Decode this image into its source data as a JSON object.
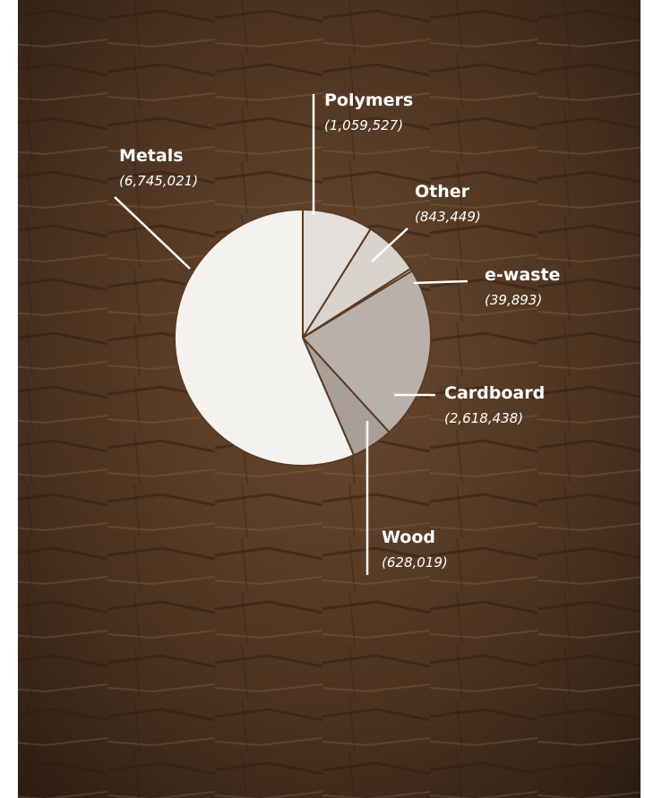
{
  "chart_data": {
    "type": "pie",
    "categories": [
      "Polymers",
      "Other",
      "e-waste",
      "Cardboard",
      "Wood",
      "Metals"
    ],
    "values": [
      1059527,
      843449,
      39893,
      2618438,
      628019,
      6745021
    ],
    "value_labels": [
      "(1,059,527)",
      "(843,449)",
      "(39,893)",
      "(2,618,438)",
      "(628,019)",
      "(6,745,021)"
    ],
    "colors": [
      "#e3dfdb",
      "#d9d3cd",
      "#cdc5be",
      "#b9b0a9",
      "#a99f97",
      "#f4f2ef"
    ]
  }
}
